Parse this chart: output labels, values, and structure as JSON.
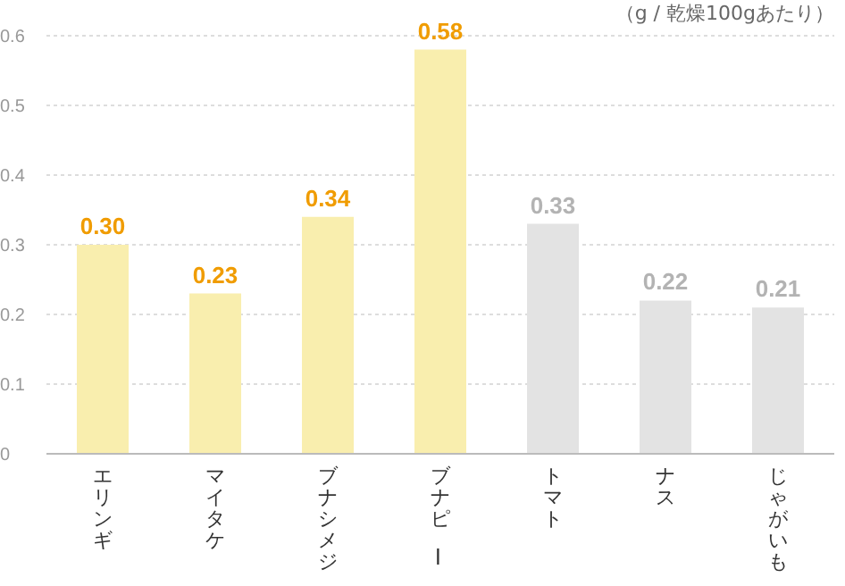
{
  "chart_data": {
    "type": "bar",
    "ylabel": "（g / 乾燥100gあたり）",
    "categories": [
      "エリンギ",
      "マイタケ",
      "ブナシメジ",
      "ブナピー",
      "トマト",
      "ナス",
      "じゃがいも"
    ],
    "values": [
      0.3,
      0.23,
      0.34,
      0.58,
      0.33,
      0.22,
      0.21
    ],
    "value_labels": [
      "0.30",
      "0.23",
      "0.34",
      "0.58",
      "0.33",
      "0.22",
      "0.21"
    ],
    "colors": [
      "#f9eeae",
      "#f9eeae",
      "#f9eeae",
      "#f9eeae",
      "#e3e3e3",
      "#e3e3e3",
      "#e3e3e3"
    ],
    "ylim": [
      0,
      0.6
    ],
    "yticks": [
      0,
      0.1,
      0.2,
      0.3,
      0.4,
      0.5,
      0.6
    ],
    "grid": "y"
  }
}
